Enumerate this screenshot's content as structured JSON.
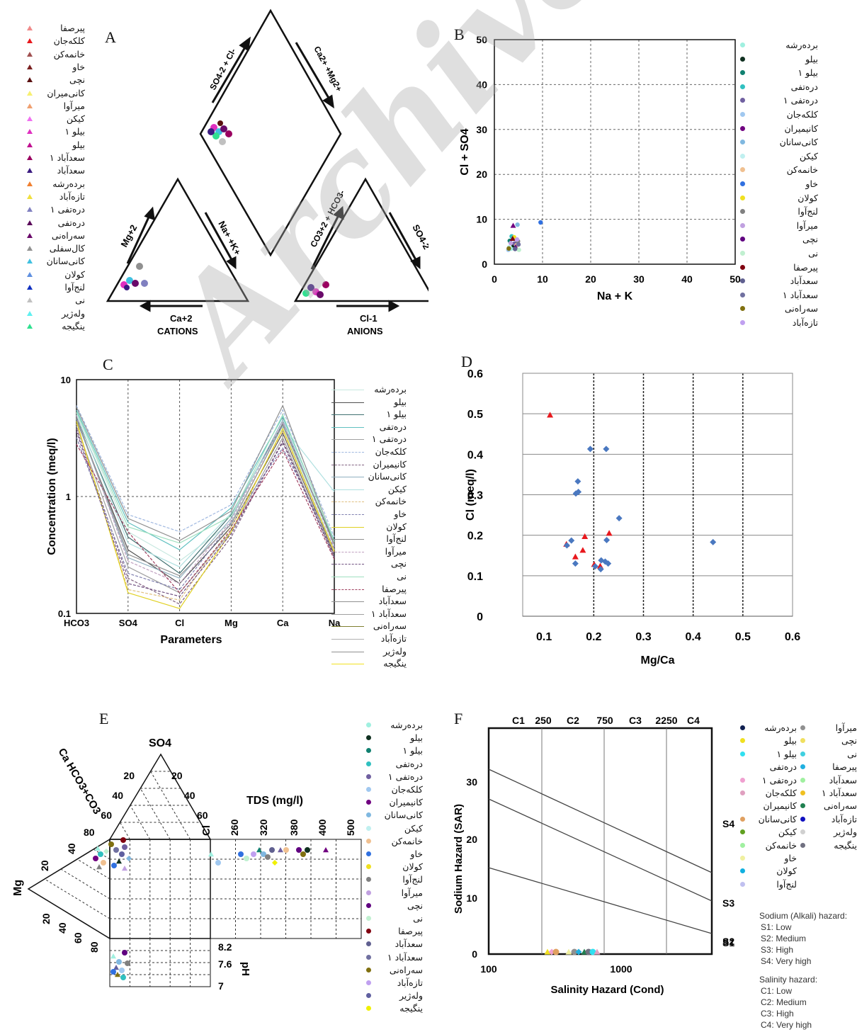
{
  "panel_labels": [
    "A",
    "B",
    "C",
    "D",
    "E",
    "F"
  ],
  "watermark": "Archive of SID",
  "colors": {
    "red": "#e8181d",
    "blue": "#4a78c0",
    "black": "#111111"
  },
  "legend_A": [
    "پیرصفا",
    "کلکه‌جان",
    "خانمه‌کن",
    "خاو",
    "نچی",
    "کانی‌میران",
    "میرآوا",
    "کیکن",
    "بیلو ۱",
    "بیلو",
    "سعدآباد ۱",
    "سعدآباد",
    "برده‌رشه",
    "تازه‌آباد",
    "دره‌تفی ۱",
    "دره‌تفی",
    "سه‌راەنی",
    "کال‌سفلی",
    "کانی‌سانان",
    "کولان",
    "لنج‌آوا",
    "نی",
    "وله‌ژیر",
    "ینگیجه"
  ],
  "legend_A_colors": [
    "#f08a8a",
    "#e8181d",
    "#a05050",
    "#7a2020",
    "#5a1010",
    "#f7f070",
    "#f0a070",
    "#f070f0",
    "#e030c0",
    "#c01090",
    "#9a0060",
    "#3a1a80",
    "#f08030",
    "#f0e040",
    "#8080c0",
    "#5a0a5a",
    "#6a0a6a",
    "#909090",
    "#40c0e0",
    "#6090e0",
    "#1030c0",
    "#c0c0c0",
    "#60f0f0",
    "#30e090"
  ],
  "legend_B": [
    "برده‌رشه",
    "بیلو",
    "بیلو ۱",
    "دره‌تفی",
    "دره‌تفی ۱",
    "کلکه‌جان",
    "کانیمیران",
    "کانی‌سانان",
    "کیکن",
    "خانمه‌کن",
    "خاو",
    "کولان",
    "لنج‌آوا",
    "میرآوا",
    "نچی",
    "نی",
    "پیرصفا",
    "سعدآباد",
    "سعدآباد ۱",
    "سه‌راەنی",
    "تازه‌آباد"
  ],
  "legend_B_colors": [
    "#a0f0e0",
    "#103020",
    "#108070",
    "#30c0c0",
    "#7060a0",
    "#a0c8f0",
    "#700080",
    "#80b8e0",
    "#c0f0f0",
    "#f0c090",
    "#3070e0",
    "#f0e020",
    "#808080",
    "#c0a0e0",
    "#600080",
    "#c0f0d0",
    "#800010",
    "#606090",
    "#7070a0",
    "#807010",
    "#c0a0f0"
  ],
  "legend_C": [
    "برده‌رشه",
    "بیلو",
    "بیلو ۱",
    "دره‌تفی",
    "دره‌تفی ۱",
    "کلکه‌جان",
    "کانیمیران",
    "کانی‌سانان",
    "کیکن",
    "خانمه‌کن",
    "خاو",
    "کولان",
    "لنج‌آوا",
    "میرآوا",
    "نچی",
    "نی",
    "پیرصفا",
    "سعدآباد",
    "سعدآباد ۱",
    "سه‌راەنی",
    "تازه‌آباد",
    "وله‌ژیر",
    "ینگیجه"
  ],
  "legend_C_colors": [
    "#c8e8e0",
    "#505050",
    "#407070",
    "#60c0c0",
    "#a0a0a0",
    "#a0b8e0",
    "#806080",
    "#90b0c0",
    "#b0e0e0",
    "#e0c080",
    "#8080b0",
    "#e0d020",
    "#909090",
    "#c0a0c0",
    "#705080",
    "#a0e0c0",
    "#a04060",
    "#909090",
    "#a0a0a0",
    "#808030",
    "#b0b0b0",
    "#909090",
    "#f0e020"
  ],
  "legend_C_dashed": [
    false,
    false,
    false,
    false,
    false,
    true,
    true,
    false,
    false,
    true,
    true,
    false,
    false,
    true,
    true,
    false,
    true,
    false,
    false,
    false,
    false,
    false,
    false
  ],
  "legend_E": [
    "برده‌رشه",
    "بیلو",
    "بیلو ۱",
    "دره‌تفی",
    "دره‌تفی ۱",
    "کلکه‌جان",
    "کانیمیران",
    "کانی‌سانان",
    "کیکن",
    "خانمه‌کن",
    "خاو",
    "کولان",
    "لنج‌آوا",
    "میرآوا",
    "نچی",
    "نی",
    "پیرصفا",
    "سعدآباد",
    "سعدآباد ۱",
    "سه‌راەنی",
    "تازه‌آباد",
    "وله‌ژیر",
    "ینگیجه"
  ],
  "legend_E_colors": [
    "#a0f0e0",
    "#103020",
    "#108070",
    "#30c0c0",
    "#7060a0",
    "#a0c8f0",
    "#700080",
    "#80b8e0",
    "#c0f0f0",
    "#f0c090",
    "#3070e0",
    "#f0e020",
    "#808080",
    "#c0a0e0",
    "#600080",
    "#c0f0d0",
    "#800010",
    "#606090",
    "#7070a0",
    "#807010",
    "#c0a0f0",
    "#6060a0",
    "#f0f000"
  ],
  "legend_F_left": [
    "برده‌رشه",
    "بیلو",
    "بیلو ۱",
    "دره‌تفی",
    "دره‌تفی ۱",
    "کلکه‌جان",
    "کانیمیران",
    "کانی‌سانان",
    "کیکن",
    "خانمه‌کن",
    "خاو",
    "کولان",
    "لنج‌آوا"
  ],
  "legend_F_left_colors": [
    "#102050",
    "#f0e020",
    "#30e0f0",
    "#ffffff",
    "#f0a0d0",
    "#e0a0c0",
    "#ffffff",
    "#e0a060",
    "#60a020",
    "#a0f0a0",
    "#f0f0a0",
    "#10b0e0",
    "#c0c0f0"
  ],
  "legend_F_right": [
    "میرآوا",
    "نچی",
    "نی",
    "پیرصفا",
    "سعدآباد",
    "سعدآباد ۱",
    "سه‌راەنی",
    "تازه‌آباد",
    "وله‌ژیر",
    "ینگیجه"
  ],
  "legend_F_right_colors": [
    "#909090",
    "#f0e060",
    "#40d0e0",
    "#20b0e0",
    "#a0f0a0",
    "#f0c020",
    "#208050",
    "#1010c0",
    "#d0d0d0",
    "#707080"
  ],
  "legend_F_notes": [
    "Sodium (Alkali) hazard:",
    "S1: Low",
    "S2: Medium",
    "S3: High",
    "S4: Very high",
    "Salinity hazard:",
    "C1: Low",
    "C2: Medium",
    "C3: High",
    "C4: Very high"
  ],
  "chart_data": [
    {
      "type": "scatter",
      "panel": "A",
      "subtype": "piper",
      "cation_axes": [
        "Mg+2",
        "Na+ +K+",
        "Ca+2"
      ],
      "anion_axes": [
        "CO3-2 + HCO3-",
        "SO4-2",
        "Cl-1"
      ],
      "diamond_axes": [
        "SO4-2 + Cl-",
        "Ca2+ + Mg2+"
      ],
      "labels": {
        "cations": "CATIONS",
        "anions": "ANIONS",
        "mg": "Mg+2",
        "na": "Na+ +K+",
        "ca": "Ca+2",
        "co3": "CO3+2 + HCO3-",
        "so4": "SO4-2",
        "cl": "Cl-1",
        "so4cl": "SO4-2 + Cl-",
        "camg": "Ca2+ +Mg2+"
      }
    },
    {
      "type": "scatter",
      "panel": "B",
      "xlabel": "Na + K",
      "ylabel": "Cl + SO4",
      "xlim": [
        0,
        50
      ],
      "ylim": [
        0,
        50
      ],
      "xticks": [
        0,
        10,
        20,
        30,
        40,
        50
      ],
      "yticks": [
        0,
        10,
        20,
        30,
        40,
        50
      ],
      "grid": true,
      "points": [
        [
          3.5,
          3.5
        ],
        [
          4.0,
          4.2
        ],
        [
          3.2,
          5.2
        ],
        [
          3.6,
          6.2
        ],
        [
          4.2,
          4.6
        ],
        [
          2.9,
          3.2
        ],
        [
          3.9,
          8.6
        ],
        [
          4.8,
          8.8
        ],
        [
          3.1,
          3.8
        ],
        [
          4.6,
          4.2
        ],
        [
          9.6,
          9.3
        ],
        [
          4.1,
          6.0
        ],
        [
          4.9,
          5.1
        ],
        [
          3.4,
          4.7
        ],
        [
          4.4,
          3.8
        ],
        [
          5.1,
          3.2
        ],
        [
          3.8,
          5.7
        ],
        [
          4.3,
          3.4
        ],
        [
          5.0,
          4.4
        ],
        [
          3.0,
          3.5
        ],
        [
          4.7,
          5.5
        ]
      ]
    },
    {
      "type": "line",
      "panel": "C",
      "subtype": "schoeller",
      "xlabel": "Parameters",
      "ylabel": "Concentration (meq/l)",
      "categories": [
        "HCO3",
        "SO4",
        "Cl",
        "Mg",
        "Ca",
        "Na"
      ],
      "yscale": "log",
      "ylim": [
        0.1,
        10
      ],
      "yticks": [
        "10",
        "1",
        "0.1"
      ],
      "series": [
        {
          "values": [
            5.2,
            0.5,
            0.28,
            0.6,
            4.0,
            0.35
          ]
        },
        {
          "values": [
            4.5,
            0.35,
            0.18,
            0.55,
            3.5,
            0.32
          ]
        },
        {
          "values": [
            4.8,
            0.45,
            0.22,
            0.7,
            4.2,
            0.4
          ]
        },
        {
          "values": [
            5.5,
            0.6,
            0.35,
            0.8,
            4.8,
            0.42
          ]
        },
        {
          "values": [
            4.0,
            0.25,
            0.15,
            0.5,
            3.2,
            0.3
          ]
        },
        {
          "values": [
            6.0,
            0.7,
            0.5,
            0.85,
            5.5,
            0.45
          ]
        },
        {
          "values": [
            3.8,
            0.2,
            0.12,
            0.45,
            3.0,
            0.31
          ]
        },
        {
          "values": [
            4.6,
            0.3,
            0.2,
            0.65,
            4.5,
            0.38
          ]
        },
        {
          "values": [
            5.0,
            0.4,
            0.25,
            0.72,
            4.0,
            1.1
          ]
        },
        {
          "values": [
            4.2,
            0.16,
            0.13,
            0.55,
            3.6,
            0.33
          ]
        },
        {
          "values": [
            3.2,
            0.22,
            0.16,
            0.6,
            2.6,
            0.36
          ]
        },
        {
          "values": [
            4.4,
            0.15,
            0.11,
            0.5,
            3.8,
            0.34
          ]
        },
        {
          "values": [
            5.8,
            0.65,
            0.42,
            0.75,
            6.0,
            0.4
          ]
        },
        {
          "values": [
            4.9,
            0.28,
            0.18,
            0.62,
            4.3,
            0.37
          ]
        },
        {
          "values": [
            3.6,
            0.18,
            0.14,
            0.48,
            2.9,
            0.3
          ]
        },
        {
          "values": [
            5.3,
            0.55,
            0.4,
            0.68,
            5.0,
            0.41
          ]
        },
        {
          "values": [
            2.8,
            0.5,
            0.15,
            0.52,
            2.5,
            0.29
          ]
        },
        {
          "values": [
            4.7,
            0.32,
            0.21,
            0.58,
            4.1,
            0.39
          ]
        }
      ]
    },
    {
      "type": "scatter",
      "panel": "D",
      "xlabel": "Mg/Ca",
      "ylabel": "Cl (meq/l)",
      "xlim": [
        0.0,
        0.6
      ],
      "ylim": [
        0.0,
        0.6
      ],
      "xticks": [
        0.1,
        0.2,
        0.3,
        0.4,
        0.5,
        0.6
      ],
      "yticks": [
        0.0,
        0.1,
        0.2,
        0.3,
        0.4,
        0.5,
        0.6
      ],
      "series": [
        {
          "marker": "triangle",
          "color": "#e8181d",
          "points": [
            [
              0.112,
              0.497
            ],
            [
              0.145,
              0.178
            ],
            [
              0.163,
              0.147
            ],
            [
              0.178,
              0.163
            ],
            [
              0.182,
              0.197
            ],
            [
              0.201,
              0.128
            ],
            [
              0.231,
              0.205
            ],
            [
              0.213,
              0.124
            ]
          ]
        },
        {
          "marker": "diamond",
          "color": "#4a78c0",
          "points": [
            [
              0.193,
              0.413
            ],
            [
              0.225,
              0.413
            ],
            [
              0.168,
              0.333
            ],
            [
              0.164,
              0.303
            ],
            [
              0.169,
              0.307
            ],
            [
              0.251,
              0.242
            ],
            [
              0.226,
              0.188
            ],
            [
              0.155,
              0.187
            ],
            [
              0.146,
              0.175
            ],
            [
              0.163,
              0.13
            ],
            [
              0.203,
              0.123
            ],
            [
              0.214,
              0.116
            ],
            [
              0.223,
              0.135
            ],
            [
              0.215,
              0.138
            ],
            [
              0.229,
              0.13
            ],
            [
              0.44,
              0.183
            ]
          ]
        }
      ]
    },
    {
      "type": "scatter",
      "panel": "E",
      "subtype": "durov",
      "labels": {
        "so4": "SO4",
        "cahco3": "Ca HCO3+CO3",
        "mg": "Mg",
        "cl": "Cl",
        "tds": "TDS (mg/l)",
        "ph": "pH"
      },
      "triangle_ticks": [
        "20",
        "40",
        "60",
        "80"
      ],
      "tds_ticks": [
        "260",
        "320",
        "380",
        "400",
        "500"
      ],
      "ph_ticks": [
        "8.2",
        "7.6",
        "7"
      ]
    },
    {
      "type": "scatter",
      "panel": "F",
      "subtype": "wilcox",
      "xlabel": "Salinity Hazard (Cond)",
      "ylabel": "Sodium Hazard (SAR)",
      "xscale": "log",
      "xticks": [
        "100",
        "1000"
      ],
      "yticks": [
        "0",
        "10",
        "20",
        "30"
      ],
      "top_ticks": [
        "C1",
        "250",
        "C2",
        "750",
        "C3",
        "2250",
        "C4"
      ],
      "zones": [
        "S4",
        "S3",
        "S2",
        "S1"
      ]
    }
  ]
}
